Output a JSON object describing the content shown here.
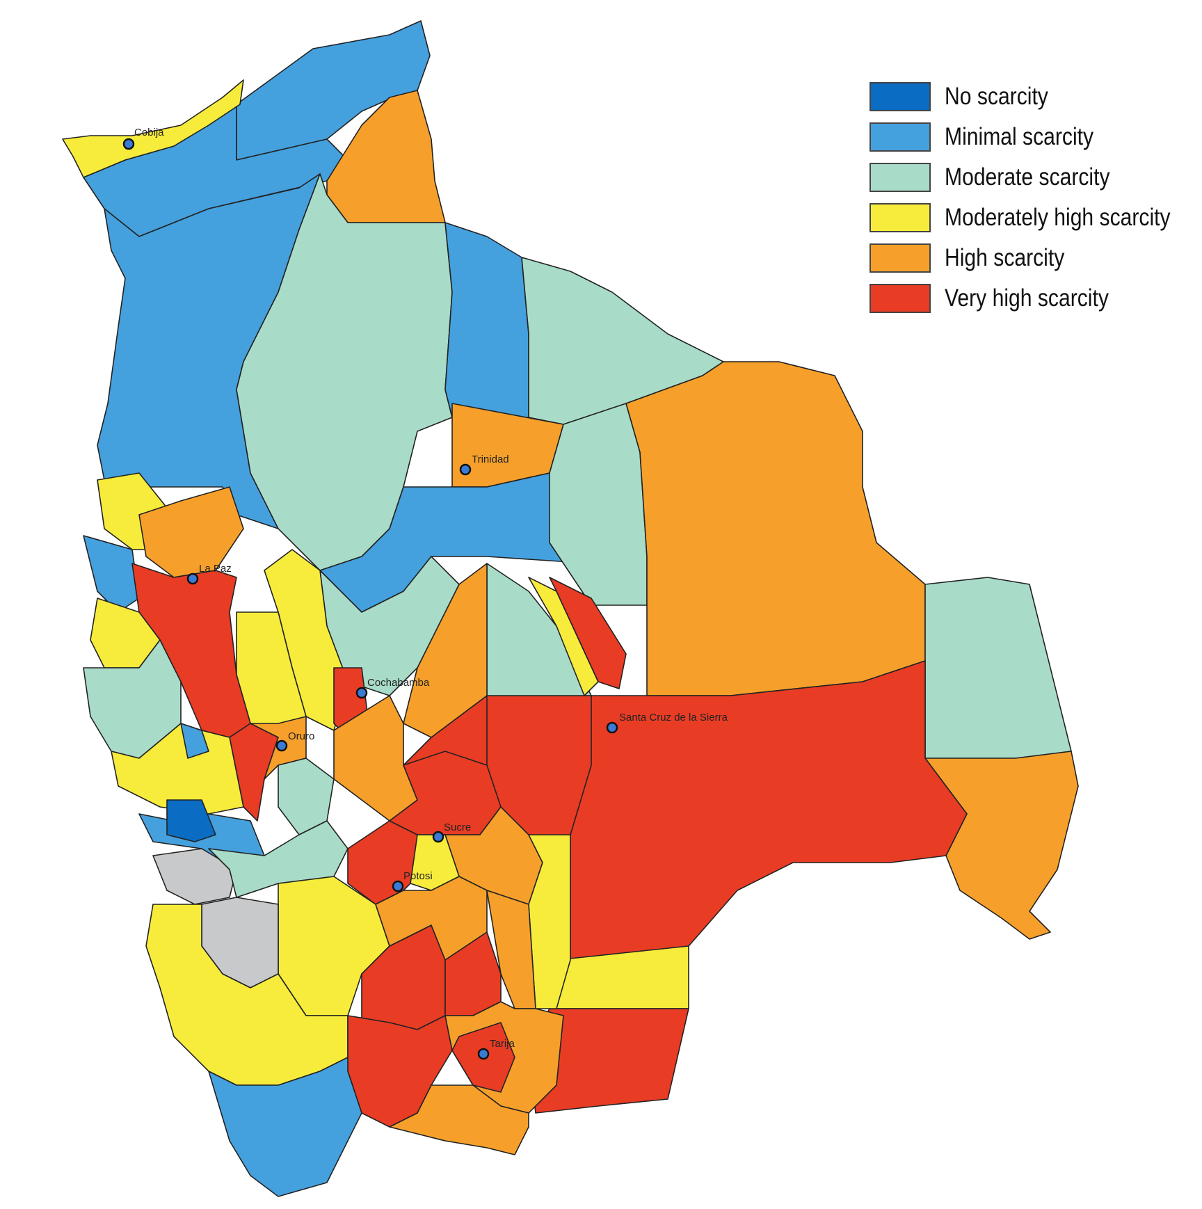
{
  "legend": {
    "items": [
      {
        "label": "No scarcity",
        "color": "#0a6cc2"
      },
      {
        "label": "Minimal scarcity",
        "color": "#45a0de"
      },
      {
        "label": "Moderate scarcity",
        "color": "#a8dcc8"
      },
      {
        "label": "Moderately high scarcity",
        "color": "#f7ec3c"
      },
      {
        "label": "High scarcity",
        "color": "#f6a02b"
      },
      {
        "label": "Very high scarcity",
        "color": "#e83c25"
      }
    ]
  },
  "no_data_color": "#c8c9cb",
  "cities": [
    "Cobija",
    "Trinidad",
    "La Paz",
    "Cochabamba",
    "Oruro",
    "Santa Cruz de la Sierra",
    "Sucre",
    "Potosi",
    "Tarija"
  ]
}
